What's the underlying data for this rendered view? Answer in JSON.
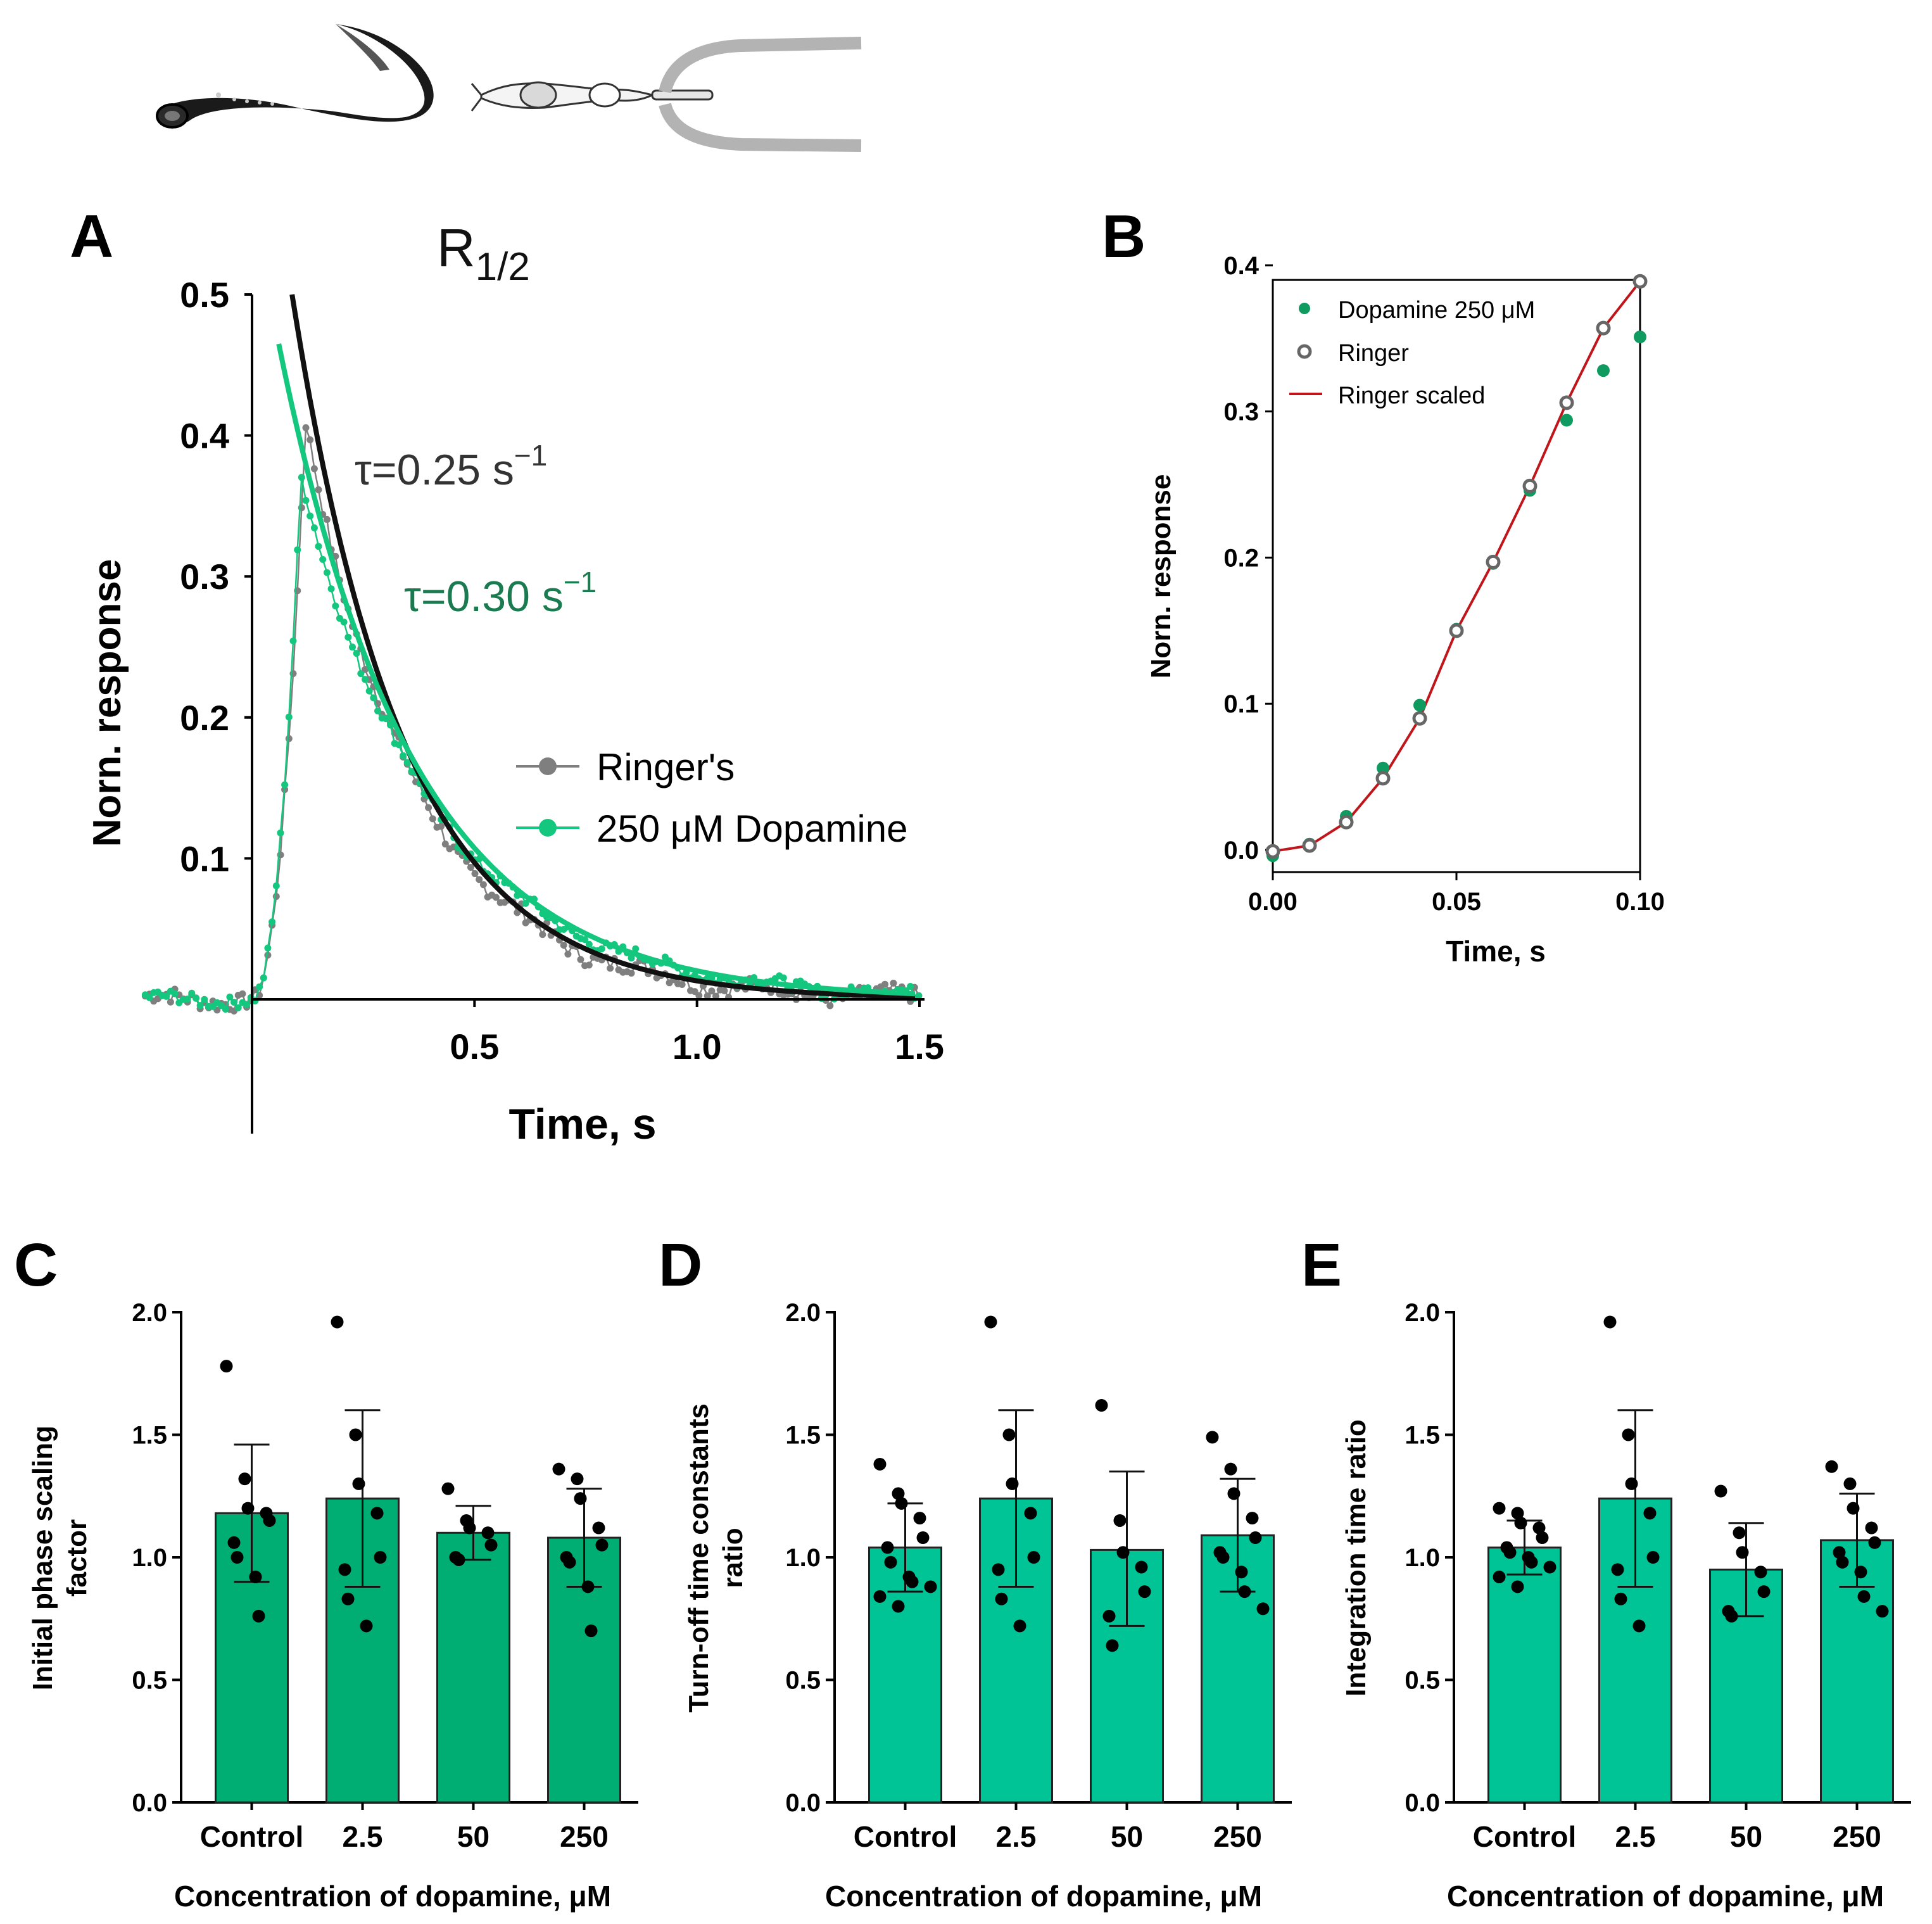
{
  "colors": {
    "ringer_gray": "#7f7f7f",
    "dopamine_green": "#14c77e",
    "dopamine_dark": "#0f9a60",
    "fit_black": "#111111",
    "tau_green_text": "#1a7a50",
    "tau_gray_text": "#333333",
    "ringer_scaled_red": "#c0161b",
    "bar_C": "#00ad72",
    "bar_DE": "#00c496",
    "tube_gray": "#b3b3b3"
  },
  "illustration": {
    "icons": [
      "lamprey-icon",
      "photoreceptor-cell-icon",
      "suction-pipette-icon"
    ]
  },
  "chart_data": [
    {
      "id": "A",
      "panel_label": "A",
      "type": "line",
      "title": "R",
      "title_sub": "1/2",
      "xlabel": "Time, s",
      "ylabel": "Norn. response",
      "xlim": [
        -0.25,
        1.5
      ],
      "ylim": [
        -0.095,
        0.5
      ],
      "xticks": [
        0.5,
        1.0,
        1.5
      ],
      "xtick_labels": [
        "0.5",
        "1.0",
        "1.5"
      ],
      "yticks": [
        0.1,
        0.2,
        0.3,
        0.4,
        0.5
      ],
      "ytick_labels": [
        "0.1",
        "0.2",
        "0.3",
        "0.4",
        "0.5"
      ],
      "annotations": [
        {
          "text": "τ=0.25 s",
          "sup": "−1",
          "series": "Ringer's"
        },
        {
          "text": "τ=0.30 s",
          "sup": "−1",
          "series": "250 μM Dopamine"
        }
      ],
      "legend_position": "center-right",
      "series": [
        {
          "name": "Ringer's",
          "color_key": "ringer_gray",
          "peak_time": 0.12,
          "peak": 0.41,
          "tau": 0.25
        },
        {
          "name": "250 μM Dopamine",
          "color_key": "dopamine_green",
          "peak_time": 0.11,
          "peak": 0.37,
          "tau": 0.3
        }
      ],
      "fits": [
        {
          "name": "Ringer's fit",
          "color_key": "fit_black",
          "amplitude": 0.5,
          "t0": 0.09,
          "tau": 0.25
        },
        {
          "name": "Dopamine fit",
          "color_key": "dopamine_green",
          "amplitude": 0.465,
          "t0": 0.06,
          "tau": 0.3
        }
      ]
    },
    {
      "id": "B",
      "panel_label": "B",
      "type": "scatter",
      "xlabel": "Time, s",
      "ylabel": "Norn. response",
      "xlim": [
        0.0,
        0.1
      ],
      "ylim": [
        -0.01,
        0.4
      ],
      "xticks": [
        0.0,
        0.05,
        0.1
      ],
      "xtick_labels": [
        "0.00",
        "0.05",
        "0.10"
      ],
      "yticks": [
        0.0,
        0.1,
        0.2,
        0.3,
        0.4
      ],
      "ytick_labels": [
        "0.0",
        "0.1",
        "0.2",
        "0.3",
        "0.4"
      ],
      "legend_position": "top-left",
      "x": [
        0.0,
        0.01,
        0.02,
        0.03,
        0.04,
        0.05,
        0.06,
        0.07,
        0.08,
        0.09,
        0.1
      ],
      "series": [
        {
          "name": "Dopamine 250 μM",
          "marker": "filled",
          "color_key": "dopamine_dark",
          "values": [
            -0.004,
            0.004,
            0.023,
            0.056,
            0.099,
            0.151,
            0.196,
            0.246,
            0.294,
            0.328,
            0.351
          ]
        },
        {
          "name": "Ringer",
          "marker": "open",
          "color_key": "ringer_gray",
          "values": [
            -0.001,
            0.003,
            0.019,
            0.049,
            0.09,
            0.15,
            0.197,
            0.249,
            0.306,
            0.357,
            0.389
          ]
        },
        {
          "name": "Ringer scaled",
          "marker": "line",
          "color_key": "ringer_scaled_red",
          "values": [
            -0.001,
            0.003,
            0.019,
            0.049,
            0.09,
            0.15,
            0.197,
            0.249,
            0.306,
            0.357,
            0.389
          ]
        }
      ]
    },
    {
      "id": "C",
      "panel_label": "C",
      "type": "bar",
      "color_key": "bar_C",
      "xlabel": "Concentration of dopamine, μM",
      "ylabel": [
        "Initial phase scaling",
        "factor"
      ],
      "ylim": [
        0.0,
        2.0
      ],
      "yticks": [
        0.0,
        0.5,
        1.0,
        1.5,
        2.0
      ],
      "ytick_labels": [
        "0.0",
        "0.5",
        "1.0",
        "1.5",
        "2.0"
      ],
      "categories": [
        "Control",
        "2.5",
        "50",
        "250"
      ],
      "values": [
        1.18,
        1.24,
        1.1,
        1.08
      ],
      "error_low": [
        0.9,
        0.88,
        0.99,
        0.88
      ],
      "error_high": [
        1.46,
        1.6,
        1.21,
        1.28
      ],
      "points": [
        [
          1.78,
          1.32,
          1.2,
          1.18,
          1.15,
          1.06,
          1.0,
          0.92,
          0.76
        ],
        [
          1.96,
          1.5,
          1.3,
          1.18,
          1.0,
          0.95,
          0.83,
          0.72
        ],
        [
          1.28,
          1.15,
          1.12,
          1.1,
          1.05,
          1.0,
          0.99
        ],
        [
          1.36,
          1.32,
          1.24,
          1.12,
          1.05,
          1.0,
          0.98,
          0.88,
          0.7
        ]
      ]
    },
    {
      "id": "D",
      "panel_label": "D",
      "type": "bar",
      "color_key": "bar_DE",
      "xlabel": "Concentration of dopamine, μM",
      "ylabel": [
        "Turn-off time constants",
        "ratio"
      ],
      "ylim": [
        0.0,
        2.0
      ],
      "yticks": [
        0.0,
        0.5,
        1.0,
        1.5,
        2.0
      ],
      "ytick_labels": [
        "0.0",
        "0.5",
        "1.0",
        "1.5",
        "2.0"
      ],
      "categories": [
        "Control",
        "2.5",
        "50",
        "250"
      ],
      "values": [
        1.04,
        1.24,
        1.03,
        1.09
      ],
      "error_low": [
        0.86,
        0.88,
        0.72,
        0.86
      ],
      "error_high": [
        1.22,
        1.6,
        1.35,
        1.32
      ],
      "points": [
        [
          1.38,
          1.26,
          1.22,
          1.16,
          1.08,
          1.04,
          0.98,
          0.92,
          0.9,
          0.88,
          0.84,
          0.8
        ],
        [
          1.96,
          1.5,
          1.3,
          1.18,
          1.0,
          0.95,
          0.83,
          0.72
        ],
        [
          1.62,
          1.15,
          1.02,
          0.96,
          0.86,
          0.76,
          0.64
        ],
        [
          1.49,
          1.36,
          1.26,
          1.16,
          1.08,
          1.02,
          1.0,
          0.94,
          0.86,
          0.79
        ]
      ]
    },
    {
      "id": "E",
      "panel_label": "E",
      "type": "bar",
      "color_key": "bar_DE",
      "xlabel": "Concentration of dopamine, μM",
      "ylabel": [
        "Integration time ratio"
      ],
      "ylim": [
        0.0,
        2.0
      ],
      "yticks": [
        0.0,
        0.5,
        1.0,
        1.5,
        2.0
      ],
      "ytick_labels": [
        "0.0",
        "0.5",
        "1.0",
        "1.5",
        "2.0"
      ],
      "categories": [
        "Control",
        "2.5",
        "50",
        "250"
      ],
      "values": [
        1.04,
        1.24,
        0.95,
        1.07
      ],
      "error_low": [
        0.93,
        0.88,
        0.76,
        0.88
      ],
      "error_high": [
        1.15,
        1.6,
        1.14,
        1.26
      ],
      "points": [
        [
          1.2,
          1.18,
          1.14,
          1.12,
          1.08,
          1.04,
          1.02,
          1.0,
          0.98,
          0.96,
          0.92,
          0.88
        ],
        [
          1.96,
          1.5,
          1.3,
          1.18,
          1.0,
          0.95,
          0.83,
          0.72
        ],
        [
          1.27,
          1.1,
          1.02,
          0.94,
          0.86,
          0.78,
          0.76
        ],
        [
          1.37,
          1.3,
          1.2,
          1.12,
          1.06,
          1.02,
          0.98,
          0.94,
          0.84,
          0.78
        ]
      ]
    }
  ]
}
